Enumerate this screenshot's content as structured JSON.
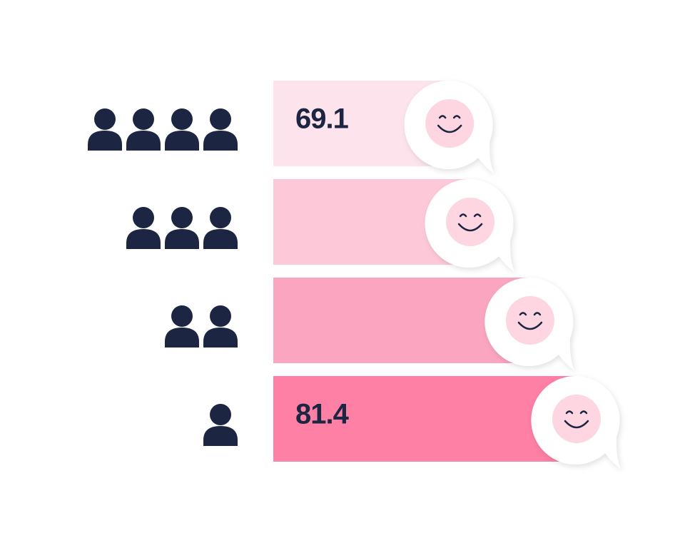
{
  "chart_data": {
    "type": "bar",
    "orientation": "horizontal",
    "categories": [
      null,
      null,
      null,
      null
    ],
    "people": [
      4,
      3,
      2,
      1
    ],
    "values": [
      69.1,
      71.1,
      76.9,
      81.4
    ],
    "labeled": [
      true,
      false,
      false,
      true
    ],
    "colors": [
      "#fde4ec",
      "#fdc9d9",
      "#fba6c0",
      "#fe80a4"
    ],
    "ylim": [
      52,
      85
    ]
  }
}
